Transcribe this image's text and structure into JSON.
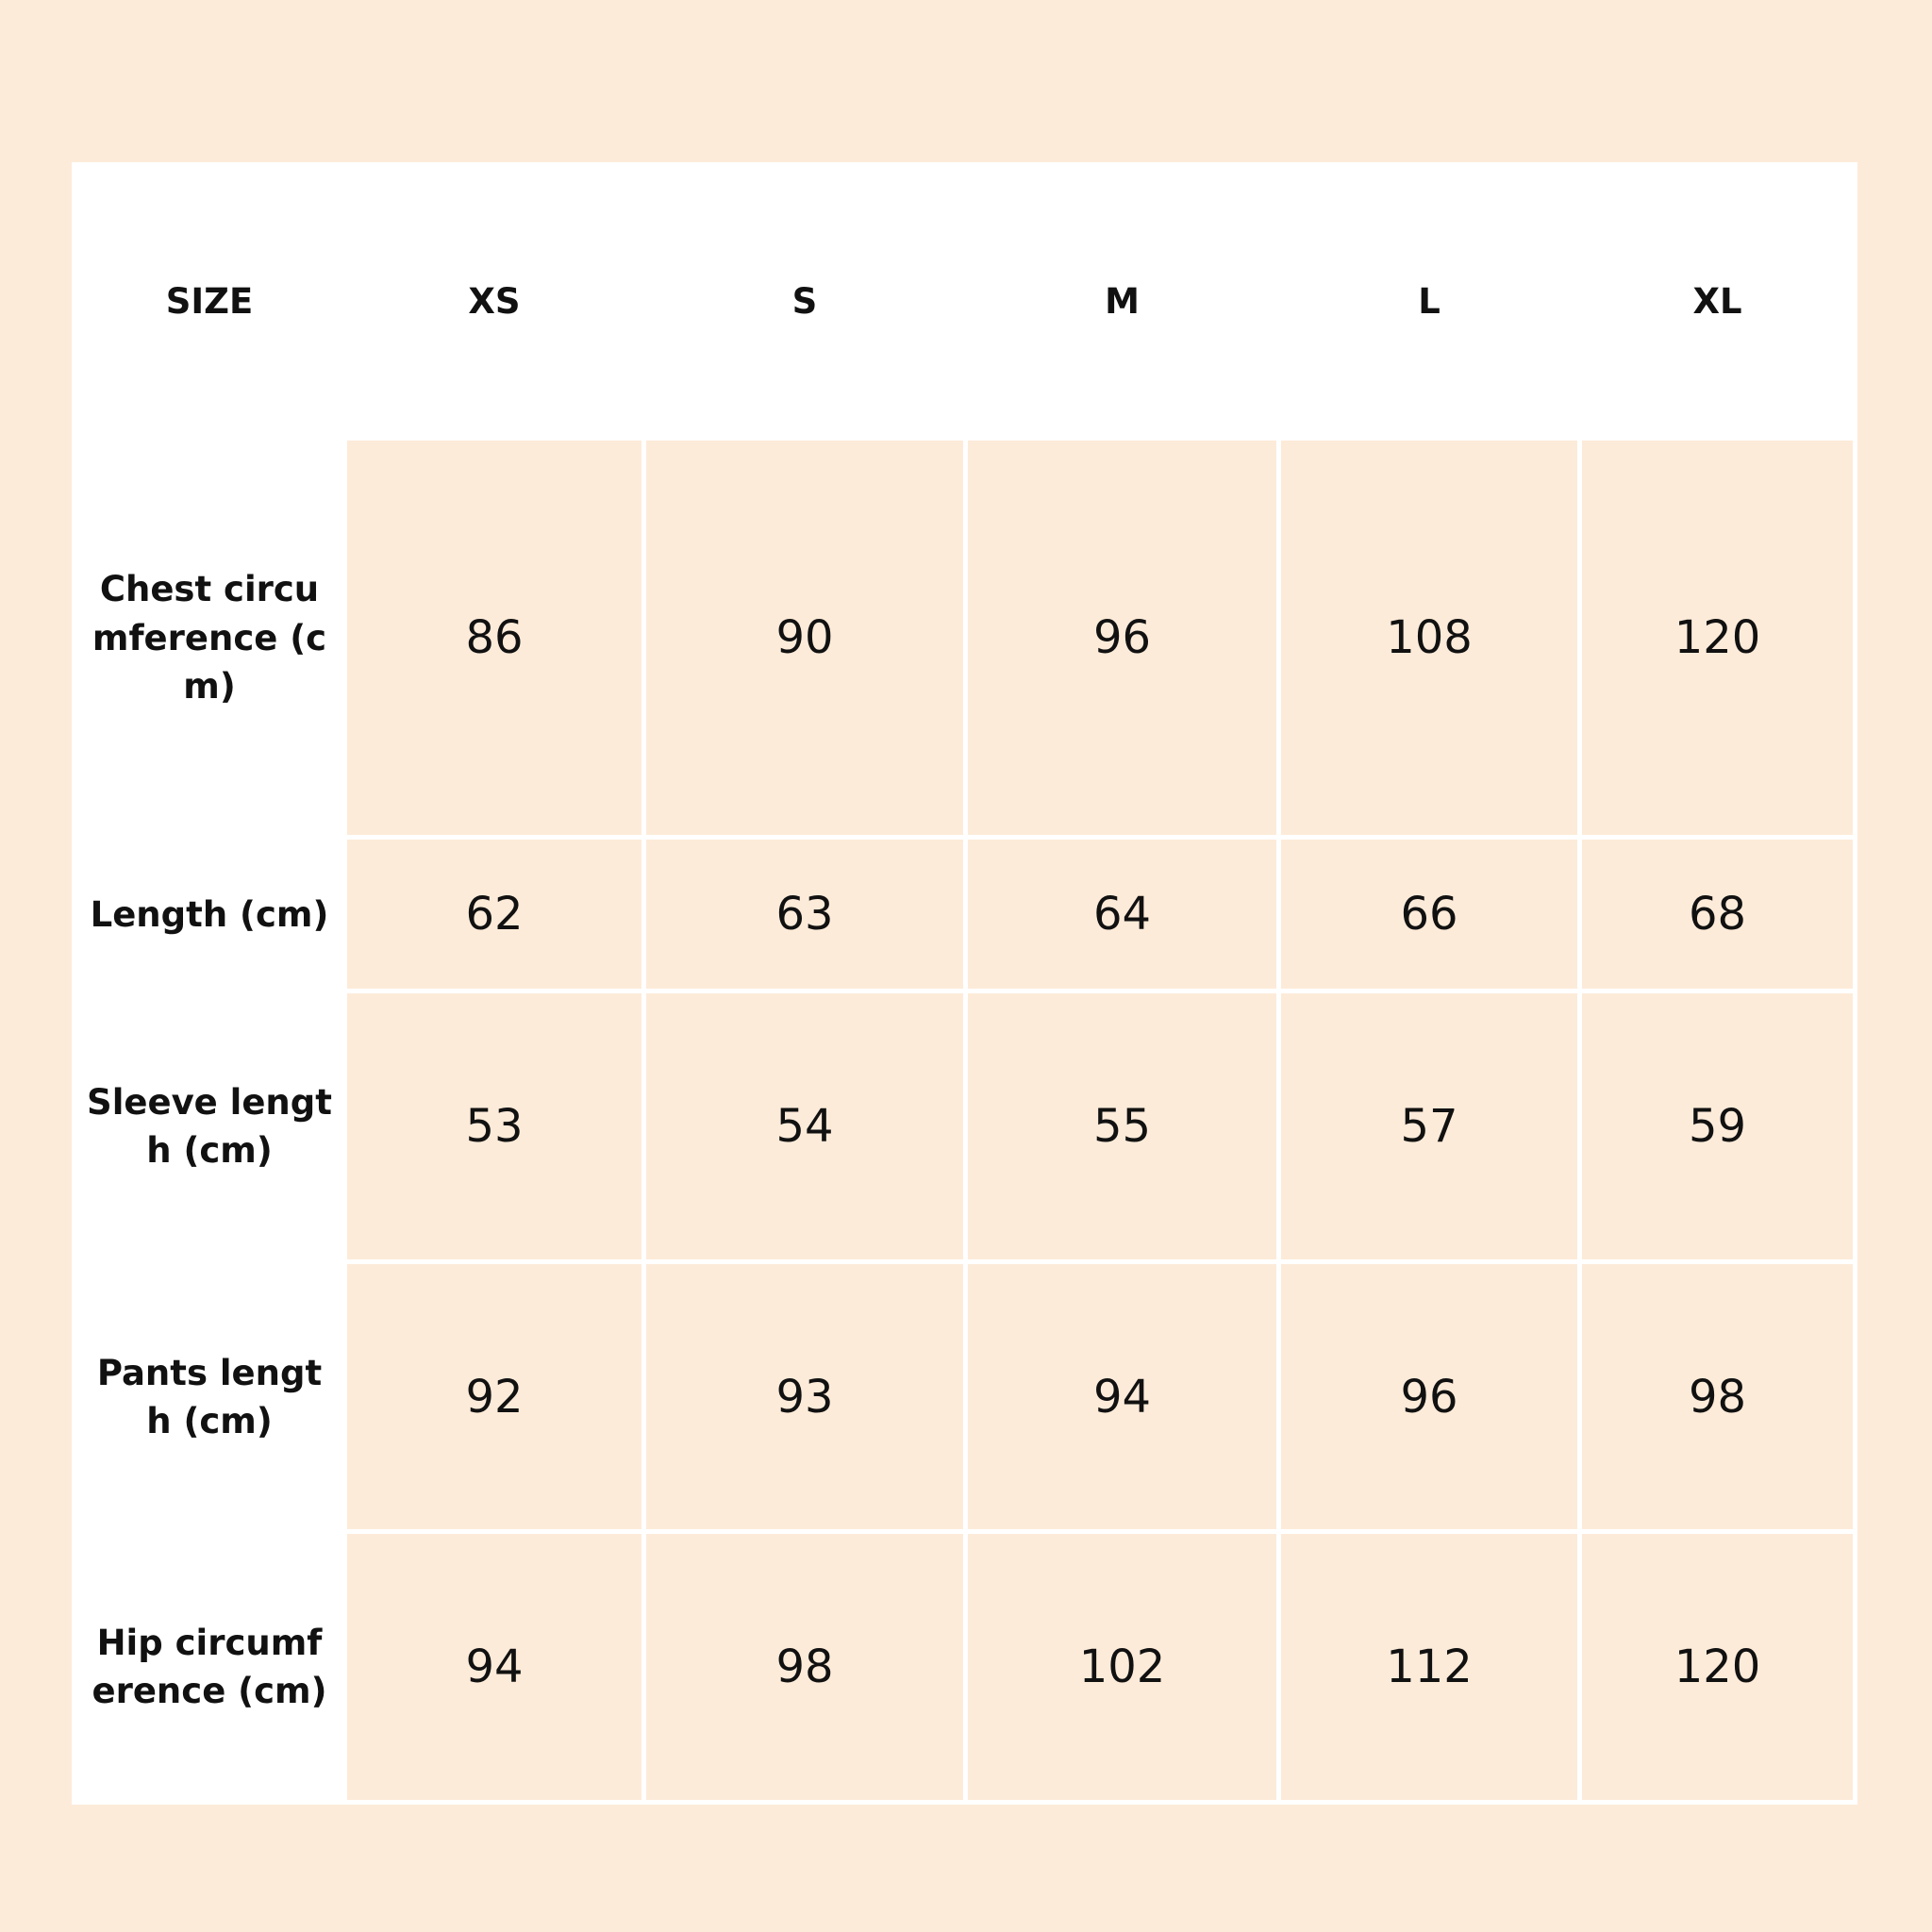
{
  "table": {
    "header": [
      "SIZE",
      "XS",
      "S",
      "M",
      "L",
      "XL"
    ],
    "rows": [
      [
        "Chest circumference (cm)",
        86,
        90,
        96,
        108,
        120
      ],
      [
        "Length (cm)",
        62,
        63,
        64,
        66,
        68
      ],
      [
        "Sleeve length (cm)",
        53,
        54,
        55,
        57,
        59
      ],
      [
        "Pants length (cm)",
        92,
        93,
        94,
        96,
        98
      ],
      [
        "Hip circumference (cm)",
        94,
        98,
        102,
        112,
        120
      ]
    ]
  }
}
